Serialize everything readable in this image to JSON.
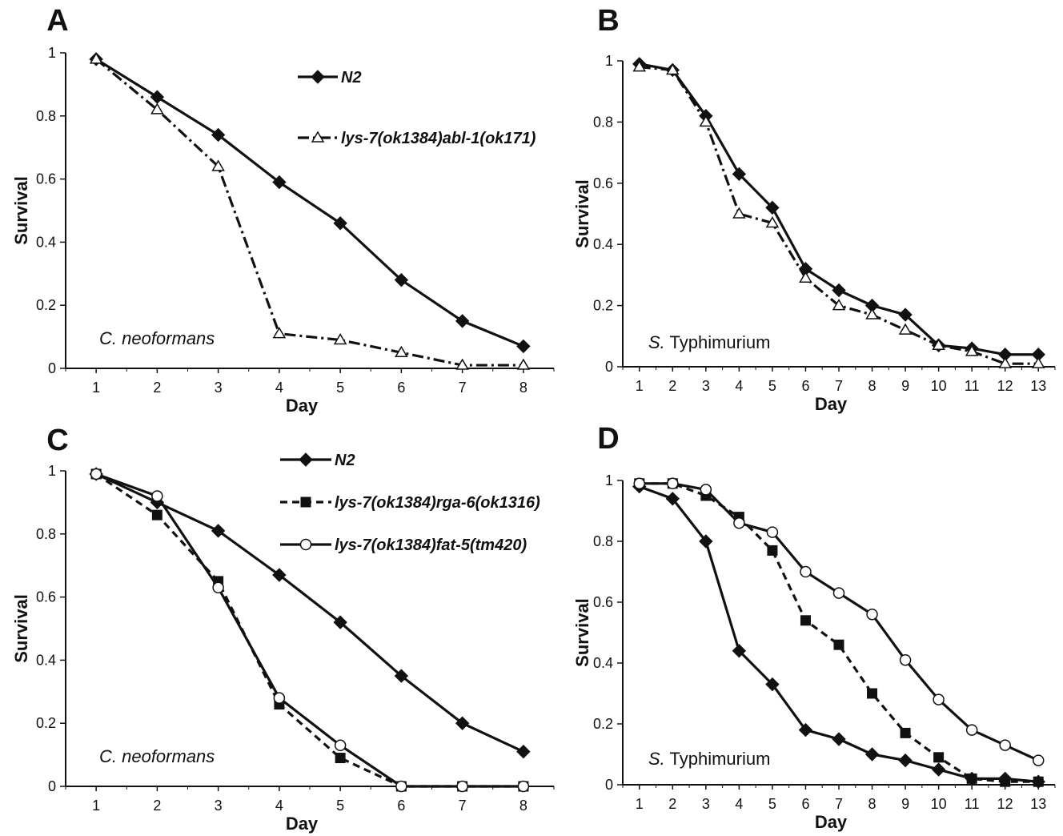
{
  "chart_data": [
    {
      "panel": "A",
      "type": "line",
      "xlabel": "Day",
      "ylabel": "Survival",
      "annotation": "C. neoformans",
      "annotation_italic_prefix": "C. neoformans",
      "annotation_rest": "",
      "x": [
        1,
        2,
        3,
        4,
        5,
        6,
        7,
        8
      ],
      "xlim": [
        0.5,
        8.5
      ],
      "ylim": [
        0,
        1
      ],
      "yticks": [
        "0",
        "0.2",
        "0.4",
        "0.6",
        "0.8",
        "1"
      ],
      "series": [
        {
          "name": "N2",
          "marker": "diamond",
          "dash": "solid",
          "values": [
            0.98,
            0.86,
            0.74,
            0.59,
            0.46,
            0.28,
            0.15,
            0.07
          ]
        },
        {
          "name": "lys-7(ok1384)abl-1(ok171)",
          "marker": "triangle-open",
          "dash": "dashdot",
          "values": [
            0.98,
            0.82,
            0.64,
            0.11,
            0.09,
            0.05,
            0.01,
            0.01
          ]
        }
      ],
      "legend_placement": "top-right"
    },
    {
      "panel": "B",
      "type": "line",
      "xlabel": "Day",
      "ylabel": "Survival",
      "annotation_italic_prefix": "S.",
      "annotation_rest": " Typhimurium",
      "x": [
        1,
        2,
        3,
        4,
        5,
        6,
        7,
        8,
        9,
        10,
        11,
        12,
        13
      ],
      "xlim": [
        0.5,
        13.5
      ],
      "ylim": [
        0,
        1
      ],
      "yticks": [
        "0",
        "0.2",
        "0.4",
        "0.6",
        "0.8",
        "1"
      ],
      "series": [
        {
          "name": "N2",
          "marker": "diamond",
          "dash": "solid",
          "values": [
            0.99,
            0.97,
            0.82,
            0.63,
            0.52,
            0.32,
            0.25,
            0.2,
            0.17,
            0.07,
            0.06,
            0.04,
            0.04
          ]
        },
        {
          "name": "lys-7(ok1384)abl-1(ok171)",
          "marker": "triangle-open",
          "dash": "dashdot",
          "values": [
            0.98,
            0.97,
            0.8,
            0.5,
            0.47,
            0.29,
            0.2,
            0.17,
            0.12,
            0.07,
            0.05,
            0.01,
            0.01
          ]
        }
      ]
    },
    {
      "panel": "C",
      "type": "line",
      "xlabel": "Day",
      "ylabel": "Survival",
      "annotation_italic_prefix": "C. neoformans",
      "annotation_rest": "",
      "x": [
        1,
        2,
        3,
        4,
        5,
        6,
        7,
        8
      ],
      "xlim": [
        0.5,
        8.5
      ],
      "ylim": [
        0,
        1
      ],
      "yticks": [
        "0",
        "0.2",
        "0.4",
        "0.6",
        "0.8",
        "1"
      ],
      "series": [
        {
          "name": "N2",
          "marker": "diamond",
          "dash": "solid",
          "values": [
            0.99,
            0.9,
            0.81,
            0.67,
            0.52,
            0.35,
            0.2,
            0.11
          ]
        },
        {
          "name": "lys-7(ok1384)rga-6(ok1316)",
          "marker": "square",
          "dash": "dashed",
          "values": [
            0.99,
            0.86,
            0.65,
            0.26,
            0.09,
            0.0,
            0.0,
            0.0
          ]
        },
        {
          "name": "lys-7(ok1384)fat-5(tm420)",
          "marker": "circle-open",
          "dash": "solid",
          "values": [
            0.99,
            0.92,
            0.63,
            0.28,
            0.13,
            0.0,
            0.0,
            0.0
          ]
        }
      ],
      "legend_placement": "top-center"
    },
    {
      "panel": "D",
      "type": "line",
      "xlabel": "Day",
      "ylabel": "Survival",
      "annotation_italic_prefix": "S.",
      "annotation_rest": " Typhimurium",
      "x": [
        1,
        2,
        3,
        4,
        5,
        6,
        7,
        8,
        9,
        10,
        11,
        12,
        13
      ],
      "xlim": [
        0.5,
        13.5
      ],
      "ylim": [
        0,
        1
      ],
      "yticks": [
        "0",
        "0.2",
        "0.4",
        "0.6",
        "0.8",
        "1"
      ],
      "series": [
        {
          "name": "N2",
          "marker": "diamond",
          "dash": "solid",
          "values": [
            0.98,
            0.94,
            0.8,
            0.44,
            0.33,
            0.18,
            0.15,
            0.1,
            0.08,
            0.05,
            0.02,
            0.02,
            0.01
          ]
        },
        {
          "name": "lys-7(ok1384)rga-6(ok1316)",
          "marker": "square",
          "dash": "dashed",
          "values": [
            0.99,
            0.99,
            0.95,
            0.88,
            0.77,
            0.54,
            0.46,
            0.3,
            0.17,
            0.09,
            0.02,
            0.01,
            0.01
          ]
        },
        {
          "name": "lys-7(ok1384)fat-5(tm420)",
          "marker": "circle-open",
          "dash": "solid",
          "values": [
            0.99,
            0.99,
            0.97,
            0.86,
            0.83,
            0.7,
            0.63,
            0.56,
            0.41,
            0.28,
            0.18,
            0.13,
            0.08
          ]
        }
      ]
    }
  ]
}
